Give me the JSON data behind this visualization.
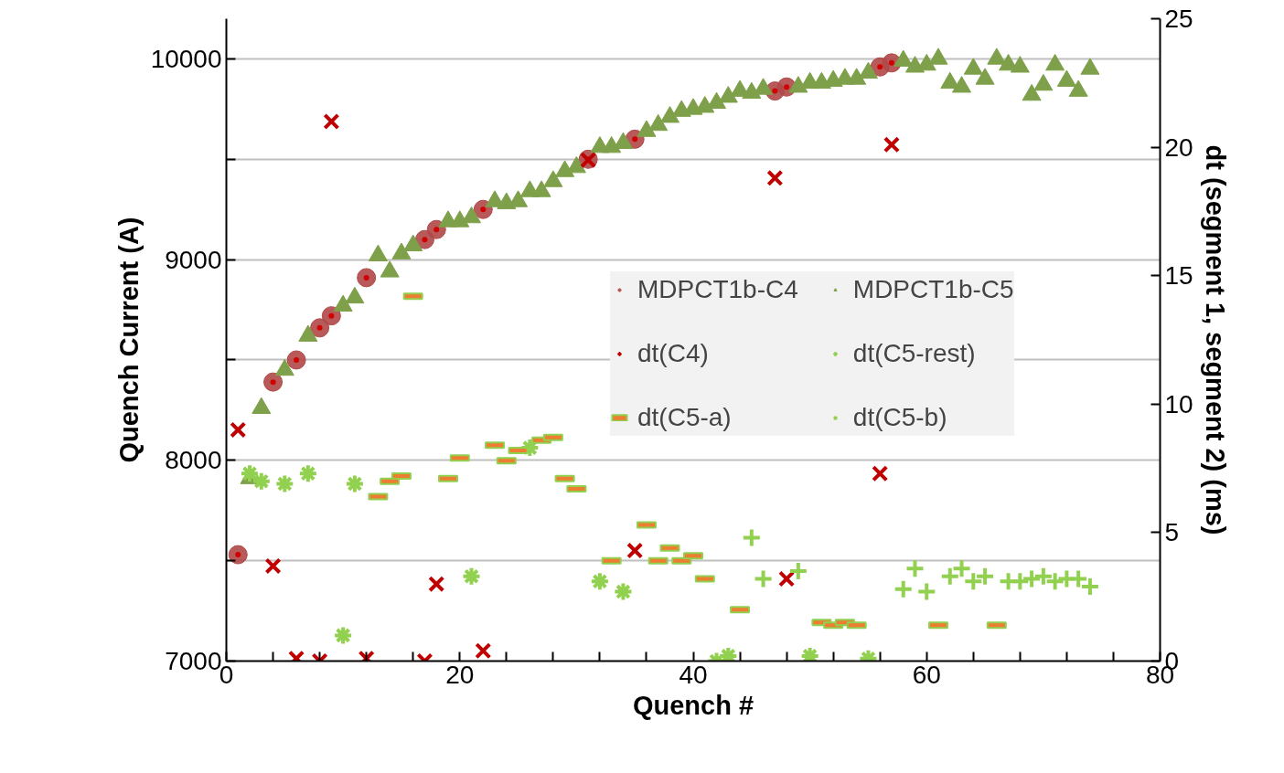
{
  "chart_data": {
    "type": "scatter",
    "xlabel": "Quench #",
    "ylabel": "Quench Current (A)",
    "y2label": "dt (segment 1, segment 2) (ms)",
    "xlim": [
      0,
      80
    ],
    "xticks": [
      0,
      {
        "value": 4,
        "label": null
      },
      {
        "value": 8,
        "label": null
      },
      {
        "value": 12,
        "label": null
      },
      {
        "value": 16,
        "label": null
      },
      20,
      {
        "value": 24,
        "label": null
      },
      {
        "value": 28,
        "label": null
      },
      {
        "value": 32,
        "label": null
      },
      {
        "value": 36,
        "label": null
      },
      40,
      {
        "value": 44,
        "label": null
      },
      {
        "value": 48,
        "label": null
      },
      {
        "value": 52,
        "label": null
      },
      {
        "value": 56,
        "label": null
      },
      60,
      {
        "value": 64,
        "label": null
      },
      {
        "value": 68,
        "label": null
      },
      {
        "value": 72,
        "label": null
      },
      {
        "value": 76,
        "label": null
      },
      80
    ],
    "ylim": [
      7000,
      10200
    ],
    "yticks": [
      7000,
      {
        "value": 7500,
        "label": null
      },
      8000,
      {
        "value": 8500,
        "label": null
      },
      9000,
      {
        "value": 9500,
        "label": null
      },
      10000
    ],
    "y2lim": [
      0,
      25
    ],
    "y2ticks": [
      0,
      5,
      10,
      15,
      20,
      25
    ],
    "grid": "y",
    "legend": "right",
    "series": [
      {
        "name": "MDPCT1b-C4",
        "color": "#b04848",
        "marker": "circle_dot",
        "x": [
          1,
          4,
          6,
          8,
          9,
          12,
          17,
          18,
          22,
          31,
          35,
          47,
          48,
          56,
          57
        ],
        "values": [
          7530,
          8390,
          8500,
          8660,
          8720,
          8910,
          9100,
          9150,
          9250,
          9500,
          9600,
          9840,
          9860,
          9960,
          9980
        ]
      },
      {
        "name": "MDPCT1b-C5",
        "color": "#7ea04a",
        "marker": "triangle",
        "x": [
          2,
          3,
          5,
          7,
          10,
          11,
          13,
          14,
          15,
          16,
          19,
          20,
          21,
          23,
          24,
          25,
          26,
          27,
          28,
          29,
          30,
          32,
          33,
          34,
          36,
          37,
          38,
          39,
          40,
          41,
          42,
          43,
          44,
          45,
          46,
          49,
          50,
          51,
          52,
          53,
          54,
          55,
          58,
          59,
          60,
          61,
          62,
          63,
          64,
          65,
          66,
          67,
          68,
          69,
          70,
          71,
          72,
          73,
          74
        ],
        "values": [
          7910,
          8260,
          8450,
          8620,
          8770,
          8810,
          9020,
          8940,
          9030,
          9070,
          9190,
          9190,
          9210,
          9290,
          9280,
          9290,
          9340,
          9340,
          9390,
          9440,
          9460,
          9560,
          9560,
          9580,
          9640,
          9670,
          9710,
          9740,
          9750,
          9760,
          9780,
          9810,
          9840,
          9830,
          9850,
          9860,
          9880,
          9880,
          9890,
          9900,
          9900,
          9930,
          9990,
          9960,
          9970,
          10000,
          9880,
          9860,
          9950,
          9900,
          10000,
          9970,
          9960,
          9820,
          9870,
          9970,
          9890,
          9840,
          9950
        ]
      },
      {
        "name": "dt(C4)",
        "color": "#c00000",
        "marker": "x",
        "axis": "y2",
        "x": [
          1,
          4,
          6,
          8,
          9,
          12,
          17,
          18,
          22,
          31,
          35,
          47,
          48,
          56,
          57
        ],
        "values": [
          9.0,
          3.7,
          0.1,
          0.0,
          21.0,
          0.1,
          0.0,
          3.0,
          0.4,
          19.5,
          4.3,
          18.8,
          3.2,
          7.3,
          20.1
        ]
      },
      {
        "name": "dt(C5-rest)",
        "color": "#92d050",
        "axis": "y2",
        "x": [
          2,
          3,
          5,
          7,
          10,
          11,
          21,
          26,
          32,
          34,
          42,
          43,
          50,
          55
        ],
        "values": [
          7.3,
          7.0,
          6.9,
          7.3,
          1.0,
          6.9,
          3.3,
          8.3,
          3.1,
          2.7,
          0.0,
          0.2,
          0.2,
          0.1
        ]
      },
      {
        "name": "dt(C5-a)",
        "color": "#92d050",
        "marker": "square",
        "axis": "y2",
        "x": [
          13,
          14,
          15,
          16,
          19,
          20,
          23,
          24,
          25,
          27,
          28,
          29,
          30,
          33,
          36,
          37,
          38,
          39,
          40,
          41,
          44,
          51,
          52,
          53,
          54,
          61,
          66
        ],
        "values": [
          6.4,
          7.0,
          7.2,
          14.2,
          7.1,
          7.9,
          8.4,
          7.8,
          8.2,
          8.6,
          8.7,
          7.1,
          6.7,
          3.9,
          5.3,
          3.9,
          4.4,
          3.9,
          4.1,
          3.2,
          2.0,
          1.5,
          1.4,
          1.5,
          1.4,
          1.4,
          1.4
        ]
      },
      {
        "name": "dt(C5-b)",
        "color": "#92d050",
        "marker": "cross",
        "axis": "y2",
        "x": [
          45,
          46,
          49,
          58,
          59,
          60,
          62,
          63,
          64,
          65,
          67,
          68,
          69,
          70,
          71,
          72,
          73,
          74
        ],
        "values": [
          4.8,
          3.2,
          3.5,
          2.8,
          3.6,
          2.7,
          3.3,
          3.6,
          3.1,
          3.3,
          3.1,
          3.1,
          3.2,
          3.3,
          3.1,
          3.2,
          3.2,
          2.9
        ]
      }
    ]
  }
}
